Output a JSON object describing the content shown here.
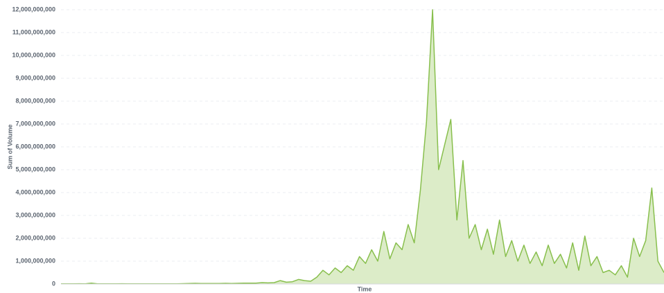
{
  "chart_data": {
    "type": "area",
    "x_label": "Time",
    "y_label": "Sum of Volume",
    "color": "#88bf4d",
    "fill": "#dcecc8",
    "grid": true,
    "categories": [
      null,
      null,
      null,
      null,
      null,
      null,
      null,
      null,
      null,
      null,
      null,
      null,
      null,
      null,
      null,
      null,
      null,
      null,
      null,
      null,
      null,
      null,
      null,
      null,
      null,
      null,
      null,
      null,
      null,
      null,
      null,
      null,
      null,
      null,
      null,
      null,
      null,
      null,
      null,
      null,
      null,
      null,
      null,
      null,
      null,
      null,
      null,
      null,
      null,
      null,
      null,
      null,
      null,
      null,
      null,
      null,
      null,
      null,
      null,
      null,
      null,
      null,
      null,
      null,
      null,
      null,
      null,
      null,
      null,
      null,
      null,
      null,
      null,
      null,
      null,
      null,
      null,
      null,
      null,
      null,
      null,
      null,
      null,
      null,
      null,
      null,
      null,
      null,
      null,
      null,
      null,
      null,
      null,
      null,
      null,
      null,
      null,
      null,
      null,
      null
    ],
    "values": [
      10000000,
      10000000,
      10000000,
      12000000,
      10000000,
      40000000,
      10000000,
      10000000,
      10000000,
      10000000,
      12000000,
      10000000,
      10000000,
      10000000,
      10000000,
      10000000,
      10000000,
      10000000,
      10000000,
      10000000,
      15000000,
      20000000,
      30000000,
      25000000,
      20000000,
      20000000,
      25000000,
      30000000,
      20000000,
      30000000,
      40000000,
      35000000,
      40000000,
      60000000,
      50000000,
      60000000,
      150000000,
      80000000,
      100000000,
      200000000,
      150000000,
      120000000,
      300000000,
      600000000,
      400000000,
      700000000,
      500000000,
      800000000,
      600000000,
      1200000000,
      900000000,
      1500000000,
      1000000000,
      2300000000,
      1100000000,
      1800000000,
      1500000000,
      2600000000,
      1800000000,
      4100000000,
      7100000000,
      12000000000,
      5000000000,
      6100000000,
      7200000000,
      2800000000,
      5400000000,
      2000000000,
      2600000000,
      1500000000,
      2400000000,
      1300000000,
      2800000000,
      1200000000,
      1900000000,
      1000000000,
      1700000000,
      900000000,
      1400000000,
      800000000,
      1700000000,
      900000000,
      1300000000,
      700000000,
      1800000000,
      600000000,
      2100000000,
      800000000,
      1200000000,
      500000000,
      600000000,
      400000000,
      800000000,
      300000000,
      2000000000,
      1200000000,
      1900000000,
      4200000000,
      1000000000,
      500000000
    ],
    "ylim": [
      0,
      12000000000
    ],
    "yticks": [
      0,
      {
        "value": 1000000000,
        "label": "1,000,000,000"
      },
      {
        "value": 2000000000,
        "label": "2,000,000,000"
      },
      {
        "value": 3000000000,
        "label": "3,000,000,000"
      },
      {
        "value": 4000000000,
        "label": "4,000,000,000"
      },
      {
        "value": 5000000000,
        "label": "5,000,000,000"
      },
      {
        "value": 6000000000,
        "label": "6,000,000,000"
      },
      {
        "value": 7000000000,
        "label": "7,000,000,000"
      },
      {
        "value": 8000000000,
        "label": "8,000,000,000"
      },
      {
        "value": 9000000000,
        "label": "9,000,000,000"
      },
      {
        "value": 10000000000,
        "label": "10,000,000,000"
      },
      {
        "value": 11000000000,
        "label": "11,000,000,000"
      },
      {
        "value": 12000000000,
        "label": "12,000,000,000"
      }
    ]
  }
}
